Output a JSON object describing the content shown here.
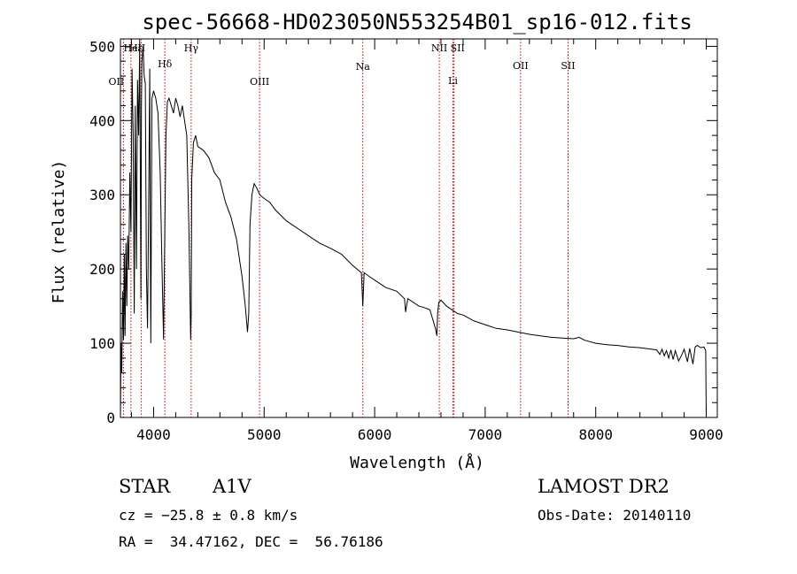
{
  "chart_data": {
    "type": "line",
    "title": "spec-56668-HD023050N553254B01_sp16-012.fits",
    "xlabel": "Wavelength (Å)",
    "ylabel": "Flux (relative)",
    "xlim": [
      3700,
      9100
    ],
    "ylim": [
      0,
      510
    ],
    "x_ticks": [
      4000,
      5000,
      6000,
      7000,
      8000,
      9000
    ],
    "y_ticks": [
      0,
      100,
      200,
      300,
      400,
      500
    ],
    "x_tick_labels": [
      "4000",
      "5000",
      "6000",
      "7000",
      "8000",
      "9000"
    ],
    "y_tick_labels": [
      "0",
      "100",
      "200",
      "300",
      "400",
      "500"
    ],
    "grid": false,
    "spectral_lines": [
      {
        "name": "Hε",
        "wavelength": 3889
      },
      {
        "name": "OII",
        "wavelength": 3727
      },
      {
        "name": "HeII",
        "wavelength": 3795
      },
      {
        "name": "Hδ",
        "wavelength": 4102
      },
      {
        "name": "Hγ",
        "wavelength": 4340
      },
      {
        "name": "OIII",
        "wavelength": 4959
      },
      {
        "name": "Na",
        "wavelength": 5893
      },
      {
        "name": "NII",
        "wavelength": 6585
      },
      {
        "name": "SII",
        "wavelength": 6718
      },
      {
        "name": "Li",
        "wavelength": 6708
      },
      {
        "name": "OII",
        "wavelength": 7320
      },
      {
        "name": "SII",
        "wavelength": 7750
      }
    ],
    "series": [
      {
        "x": [
          3700,
          3705,
          3712,
          3720,
          3728,
          3735,
          3742,
          3750,
          3758,
          3766,
          3775,
          3785,
          3795,
          3805,
          3815,
          3825,
          3835,
          3845,
          3855,
          3865,
          3875,
          3885,
          3890,
          3895,
          3905,
          3915,
          3925,
          3935,
          3945,
          3955,
          3965,
          3970,
          3975,
          3985,
          4000,
          4020,
          4040,
          4060,
          4075,
          4090,
          4102,
          4112,
          4125,
          4140,
          4160,
          4180,
          4200,
          4220,
          4240,
          4260,
          4280,
          4300,
          4320,
          4335,
          4340,
          4345,
          4360,
          4380,
          4400,
          4450,
          4500,
          4550,
          4600,
          4650,
          4700,
          4750,
          4800,
          4830,
          4850,
          4861,
          4872,
          4890,
          4910,
          4930,
          4960,
          5000,
          5050,
          5100,
          5200,
          5300,
          5400,
          5500,
          5600,
          5700,
          5800,
          5880,
          5893,
          5905,
          5950,
          6000,
          6100,
          6200,
          6270,
          6280,
          6300,
          6400,
          6450,
          6500,
          6530,
          6550,
          6563,
          6570,
          6580,
          6600,
          6650,
          6700,
          6750,
          6800,
          6900,
          7000,
          7100,
          7200,
          7300,
          7400,
          7500,
          7600,
          7700,
          7800,
          7850,
          7900,
          8000,
          8100,
          8200,
          8300,
          8400,
          8500,
          8550,
          8580,
          8600,
          8620,
          8640,
          8660,
          8680,
          8700,
          8720,
          8750,
          8780,
          8800,
          8830,
          8850,
          8880,
          8900,
          8920,
          8950,
          8980,
          8995,
          9000
        ],
        "y": [
          0,
          100,
          60,
          170,
          105,
          220,
          110,
          235,
          150,
          245,
          200,
          330,
          250,
          470,
          380,
          140,
          420,
          200,
          455,
          380,
          510,
          160,
          420,
          480,
          500,
          460,
          450,
          200,
          120,
          280,
          470,
          255,
          100,
          430,
          440,
          430,
          410,
          330,
          210,
          105,
          260,
          380,
          425,
          430,
          420,
          410,
          430,
          420,
          405,
          420,
          400,
          380,
          250,
          105,
          140,
          320,
          370,
          380,
          365,
          360,
          350,
          330,
          320,
          290,
          270,
          240,
          190,
          150,
          115,
          140,
          260,
          300,
          315,
          310,
          300,
          295,
          290,
          280,
          265,
          255,
          245,
          235,
          228,
          220,
          205,
          195,
          150,
          195,
          190,
          185,
          175,
          170,
          160,
          142,
          160,
          150,
          148,
          145,
          130,
          120,
          110,
          140,
          155,
          158,
          150,
          145,
          140,
          138,
          130,
          125,
          120,
          118,
          115,
          112,
          110,
          108,
          107,
          106,
          108,
          104,
          100,
          98,
          97,
          95,
          94,
          92,
          91,
          85,
          92,
          83,
          90,
          80,
          91,
          78,
          90,
          76,
          85,
          92,
          75,
          93,
          72,
          95,
          97,
          94,
          95,
          90,
          0
        ]
      }
    ]
  },
  "info": {
    "object_type": "STAR",
    "spectral_class": "A1V",
    "survey": "LAMOST DR2",
    "cz": "cz = −25.8 ± 0.8 km/s",
    "obs_date": "Obs-Date: 20140110",
    "coords": "RA =  34.47162, DEC =  56.76186"
  }
}
